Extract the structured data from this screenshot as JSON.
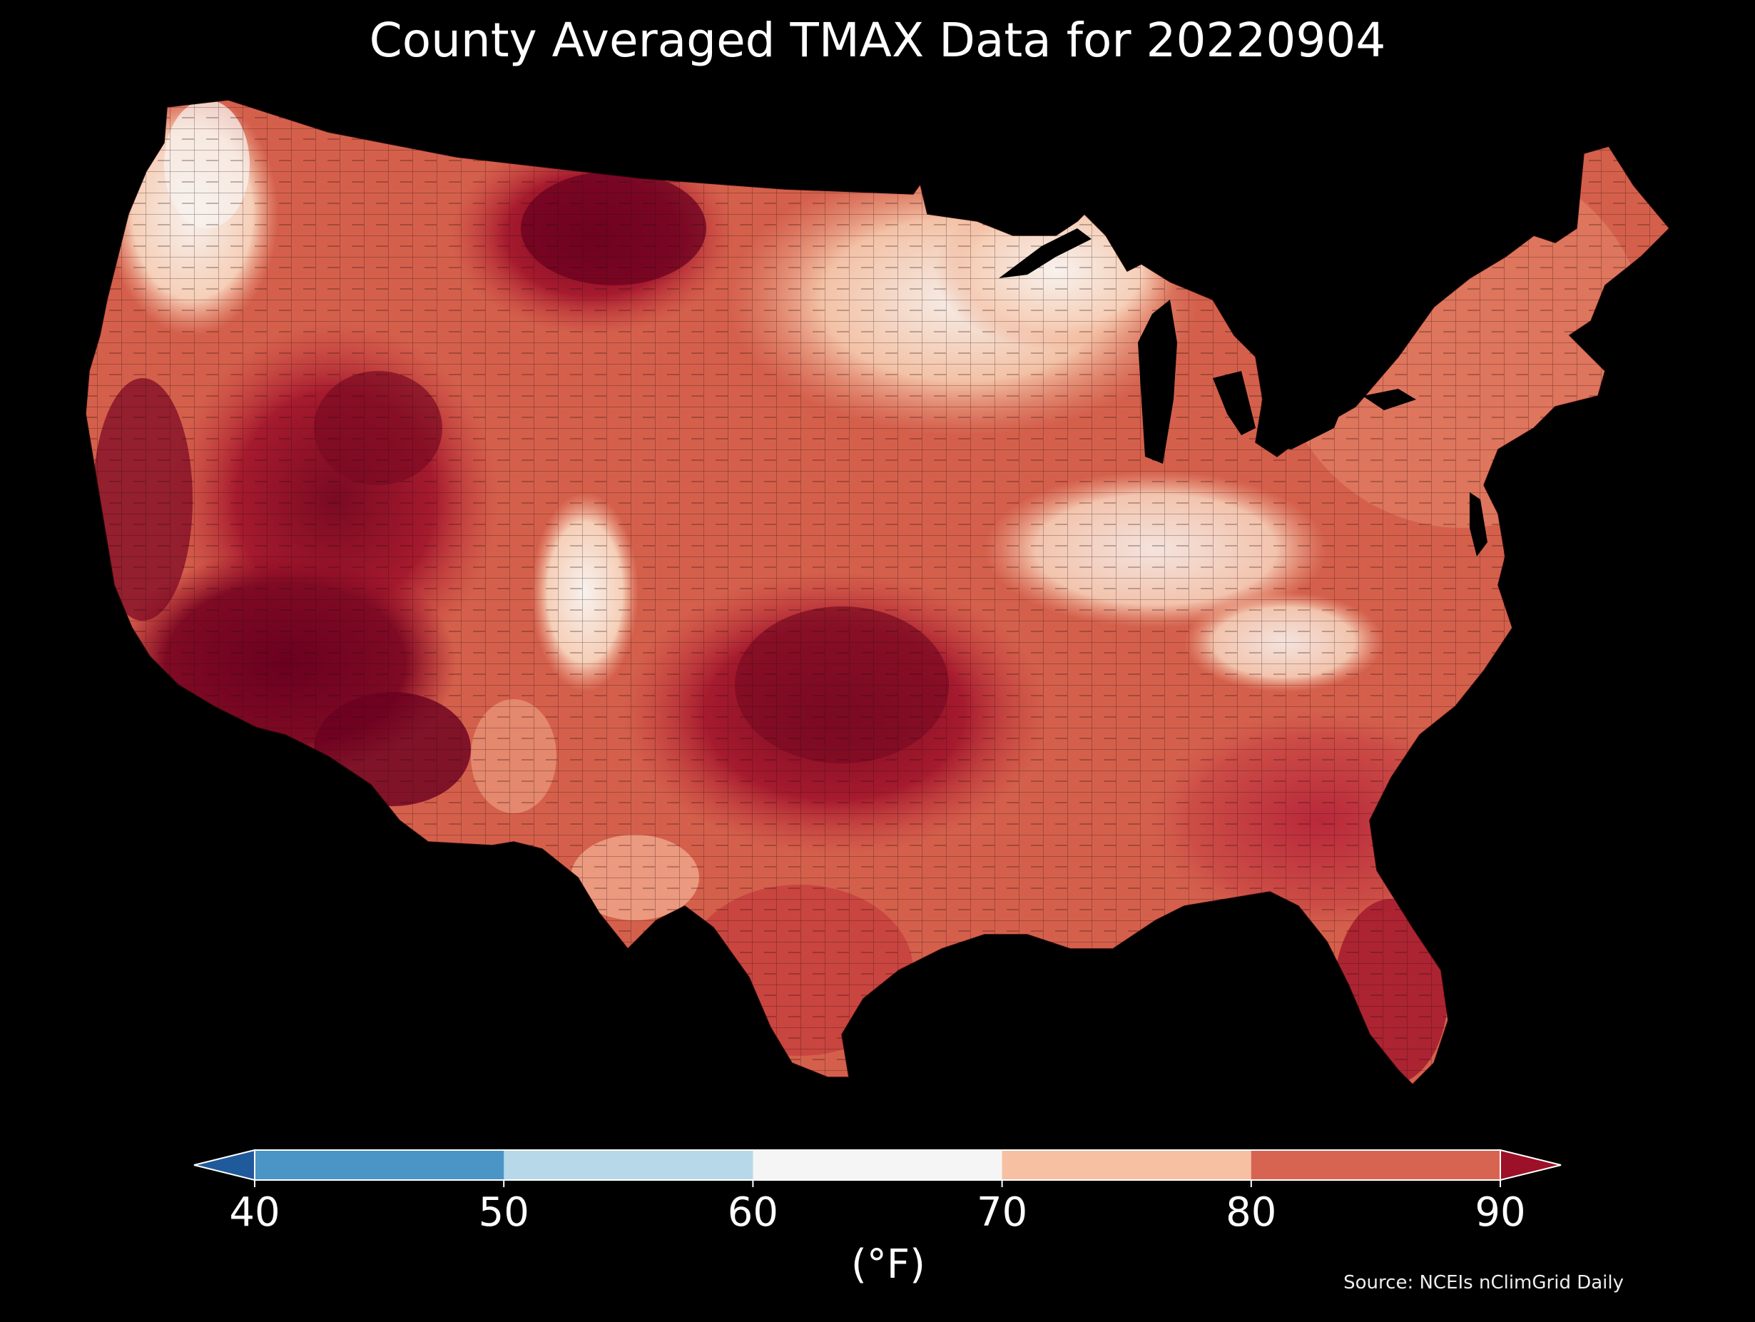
{
  "title": "County Averaged TMAX Data for 20220904",
  "colorbar": {
    "ticks": [
      "40",
      "50",
      "60",
      "70",
      "80",
      "90"
    ],
    "bins": [
      {
        "range": "<40",
        "color": "#1f5a9c"
      },
      {
        "range": "40-50",
        "color": "#4a95c5"
      },
      {
        "range": "50-60",
        "color": "#b7d8e9"
      },
      {
        "range": "60-70",
        "color": "#f5f5f5"
      },
      {
        "range": "70-80",
        "color": "#f8c0a3"
      },
      {
        "range": "80-90",
        "color": "#d76451"
      },
      {
        "range": ">90",
        "color": "#9c1028"
      }
    ],
    "unit_label": "(°F)"
  },
  "source": "Source: NCEIs nClimGrid Daily",
  "map_style": {
    "background": "#000000",
    "water": "#000000",
    "county_border": "#2a0a0a",
    "region_colors": {
      "deep_hot": "#6b0020",
      "hot": "#a51a2e",
      "warm": "#d45a47",
      "mild": "#e8957a",
      "cool": "#f5c7ad",
      "coolest": "#f4f1ee"
    }
  }
}
